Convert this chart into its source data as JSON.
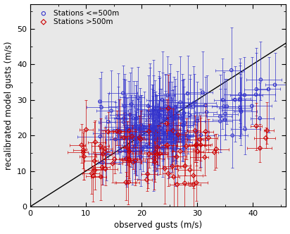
{
  "title": "",
  "xlabel": "observed gusts (m/s)",
  "ylabel": "recalibrated model gusts (m/s)",
  "xlim": [
    0,
    46
  ],
  "ylim": [
    0,
    57
  ],
  "xticks": [
    0,
    10,
    20,
    30,
    40
  ],
  "yticks": [
    0,
    10,
    20,
    30,
    40,
    50
  ],
  "figsize": [
    4.12,
    3.32
  ],
  "dpi": 100,
  "blue_color": "#3333CC",
  "red_color": "#CC0000",
  "line_color": "black",
  "bg_color": "#E8E8E8",
  "legend_loc": "upper left",
  "blue_label": "Stations <=500m",
  "red_label": "Stations >500m"
}
